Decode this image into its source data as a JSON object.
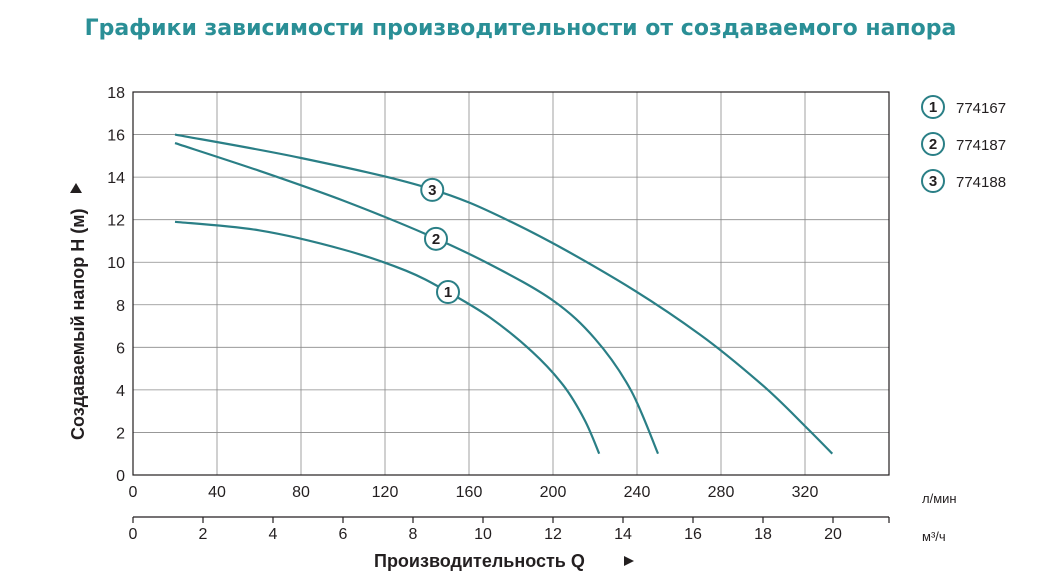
{
  "chart_data": {
    "type": "line",
    "title": "Графики зависимости производительности от создаваемого напора",
    "ylabel": "Создаваемый напор H (м)",
    "xlabel": "Производительность Q",
    "ylim": [
      0,
      18
    ],
    "yticks": [
      "0",
      "2",
      "4",
      "6",
      "8",
      "10",
      "12",
      "14",
      "16",
      "18"
    ],
    "xlim_lpm": [
      0,
      360
    ],
    "xticks_lpm": [
      "0",
      "40",
      "80",
      "120",
      "160",
      "200",
      "240",
      "280",
      "320"
    ],
    "x_unit_lpm": "л/мин",
    "xlim_m3h": [
      0,
      21.6
    ],
    "xticks_m3h": [
      "0",
      "2",
      "4",
      "6",
      "8",
      "10",
      "12",
      "14",
      "16",
      "18",
      "20"
    ],
    "x_unit_m3h": "м³/ч",
    "grid": true,
    "legend_position": "right",
    "series": [
      {
        "name": "774167",
        "marker": "1",
        "color": "#2a7f86",
        "x": [
          20,
          60,
          100,
          130,
          150,
          170,
          190,
          205,
          215,
          222
        ],
        "y": [
          11.9,
          11.5,
          10.6,
          9.6,
          8.6,
          7.4,
          5.8,
          4.2,
          2.6,
          1.0
        ],
        "marker_at": 8.6
      },
      {
        "name": "774187",
        "marker": "2",
        "color": "#2a7f86",
        "x": [
          20,
          60,
          100,
          140,
          170,
          200,
          220,
          237,
          250
        ],
        "y": [
          15.6,
          14.3,
          12.9,
          11.3,
          9.9,
          8.2,
          6.4,
          4.0,
          1.0
        ],
        "marker_at": 11.1
      },
      {
        "name": "774188",
        "marker": "3",
        "color": "#2a7f86",
        "x": [
          20,
          80,
          140,
          180,
          230,
          270,
          300,
          320,
          333
        ],
        "y": [
          16.0,
          14.9,
          13.5,
          11.9,
          9.2,
          6.6,
          4.2,
          2.3,
          1.0
        ],
        "marker_at": 13.4
      }
    ]
  }
}
